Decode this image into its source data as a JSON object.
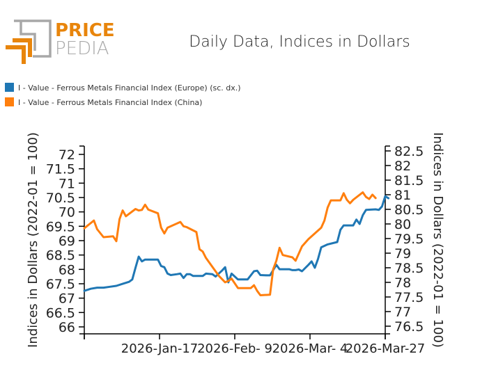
{
  "logo": {
    "line1": "PRICE",
    "line2": "PEDIA"
  },
  "chart_data": {
    "type": "line",
    "title": "Daily Data, Indices in Dollars",
    "legend_position": "top-left",
    "legend": [
      {
        "name": "I - Value - Ferrous Metals Financial Index (Europe) (sc. dx.)",
        "color": "#1f77b4",
        "axis": "right"
      },
      {
        "name": "I - Value - Ferrous Metals Financial Index (China)",
        "color": "#ff7f0e",
        "axis": "left"
      }
    ],
    "ylabel_left": "Indices in Dollars (2022-01 = 100)",
    "ylabel_right": "Indices in Dollars (2022-01 = 100)",
    "xlabel": "",
    "ylim_left": [
      65.8,
      72.3
    ],
    "ylim_right": [
      76.3,
      82.7
    ],
    "yticks_left": [
      "66",
      "66.5",
      "67",
      "67.5",
      "68",
      "68.5",
      "69",
      "69.5",
      "70",
      "70.5",
      "71",
      "71.5",
      "72"
    ],
    "yticks_right": [
      "76.5",
      "77",
      "77.5",
      "78",
      "78.5",
      "79",
      "79.5",
      "80",
      "80.5",
      "81",
      "81.5",
      "82",
      "82.5"
    ],
    "xticks": [
      "",
      "2026-Jan-17",
      "2026-Feb- 9",
      "2026-Mar- 4",
      "2026-Mar-27"
    ],
    "x_range_days": [
      0,
      94
    ],
    "xtick_days": [
      0,
      23.5,
      47,
      70.5,
      94
    ],
    "grid": false,
    "series": [
      {
        "name": "I - Value - Ferrous Metals Financial Index (Europe) (sc. dx.)",
        "axis": "right",
        "color": "#1f77b4",
        "points": [
          [
            0,
            77.71
          ],
          [
            2,
            77.78
          ],
          [
            4,
            77.82
          ],
          [
            6,
            77.82
          ],
          [
            8,
            77.85
          ],
          [
            10,
            77.88
          ],
          [
            12,
            77.95
          ],
          [
            14,
            78.02
          ],
          [
            15,
            78.1
          ],
          [
            16,
            78.5
          ],
          [
            17,
            78.88
          ],
          [
            18,
            78.72
          ],
          [
            19,
            78.78
          ],
          [
            21,
            78.78
          ],
          [
            23,
            78.78
          ],
          [
            24,
            78.56
          ],
          [
            25,
            78.52
          ],
          [
            26,
            78.3
          ],
          [
            27,
            78.25
          ],
          [
            29,
            78.28
          ],
          [
            30,
            78.3
          ],
          [
            31,
            78.15
          ],
          [
            32,
            78.28
          ],
          [
            33,
            78.28
          ],
          [
            34,
            78.22
          ],
          [
            36,
            78.22
          ],
          [
            37,
            78.22
          ],
          [
            38,
            78.3
          ],
          [
            40,
            78.28
          ],
          [
            41,
            78.2
          ],
          [
            43,
            78.4
          ],
          [
            44,
            78.52
          ],
          [
            45,
            78.0
          ],
          [
            46,
            78.3
          ],
          [
            48,
            78.1
          ],
          [
            50,
            78.1
          ],
          [
            51,
            78.1
          ],
          [
            53,
            78.38
          ],
          [
            54,
            78.4
          ],
          [
            55,
            78.25
          ],
          [
            57,
            78.24
          ],
          [
            58,
            78.24
          ],
          [
            60,
            78.6
          ],
          [
            61,
            78.45
          ],
          [
            63,
            78.45
          ],
          [
            64,
            78.45
          ],
          [
            65,
            78.42
          ],
          [
            66,
            78.42
          ],
          [
            67,
            78.44
          ],
          [
            68,
            78.38
          ],
          [
            70,
            78.6
          ],
          [
            71,
            78.72
          ],
          [
            72,
            78.5
          ],
          [
            73,
            78.8
          ],
          [
            74,
            79.2
          ],
          [
            76,
            79.3
          ],
          [
            79,
            79.38
          ],
          [
            80,
            79.8
          ],
          [
            81,
            79.95
          ],
          [
            84,
            79.95
          ],
          [
            85,
            80.15
          ],
          [
            86,
            80.0
          ],
          [
            87,
            80.3
          ],
          [
            88,
            80.48
          ],
          [
            91,
            80.5
          ],
          [
            92,
            80.48
          ],
          [
            93,
            80.6
          ],
          [
            94,
            80.95
          ],
          [
            95,
            80.88
          ]
        ]
      },
      {
        "name": "I - Value - Ferrous Metals Financial Index (China)",
        "axis": "left",
        "color": "#ff7f0e",
        "points": [
          [
            0,
            69.43
          ],
          [
            3,
            69.7
          ],
          [
            4,
            69.4
          ],
          [
            6,
            69.12
          ],
          [
            9,
            69.15
          ],
          [
            10,
            68.98
          ],
          [
            11,
            69.75
          ],
          [
            12,
            70.05
          ],
          [
            13,
            69.85
          ],
          [
            16,
            70.1
          ],
          [
            17,
            70.05
          ],
          [
            18,
            70.07
          ],
          [
            19,
            70.25
          ],
          [
            20,
            70.08
          ],
          [
            23,
            69.95
          ],
          [
            24,
            69.45
          ],
          [
            25,
            69.25
          ],
          [
            26,
            69.45
          ],
          [
            30,
            69.65
          ],
          [
            31,
            69.5
          ],
          [
            32,
            69.47
          ],
          [
            35,
            69.3
          ],
          [
            36,
            68.7
          ],
          [
            37,
            68.62
          ],
          [
            38,
            68.4
          ],
          [
            42,
            67.78
          ],
          [
            44,
            67.55
          ],
          [
            45,
            67.6
          ],
          [
            46,
            67.68
          ],
          [
            48,
            67.35
          ],
          [
            52,
            67.35
          ],
          [
            53,
            67.45
          ],
          [
            54,
            67.25
          ],
          [
            55,
            67.1
          ],
          [
            58,
            67.12
          ],
          [
            59,
            68.0
          ],
          [
            60,
            68.3
          ],
          [
            61,
            68.75
          ],
          [
            62,
            68.5
          ],
          [
            65,
            68.42
          ],
          [
            66,
            68.3
          ],
          [
            68,
            68.8
          ],
          [
            70,
            69.05
          ],
          [
            74,
            69.45
          ],
          [
            75,
            69.7
          ],
          [
            76,
            70.15
          ],
          [
            77,
            70.4
          ],
          [
            79,
            70.4
          ],
          [
            80,
            70.4
          ],
          [
            81,
            70.65
          ],
          [
            82,
            70.42
          ],
          [
            83,
            70.3
          ],
          [
            84,
            70.42
          ],
          [
            87,
            70.68
          ],
          [
            88,
            70.52
          ],
          [
            89,
            70.45
          ],
          [
            90,
            70.6
          ],
          [
            91,
            70.48
          ]
        ]
      }
    ]
  }
}
